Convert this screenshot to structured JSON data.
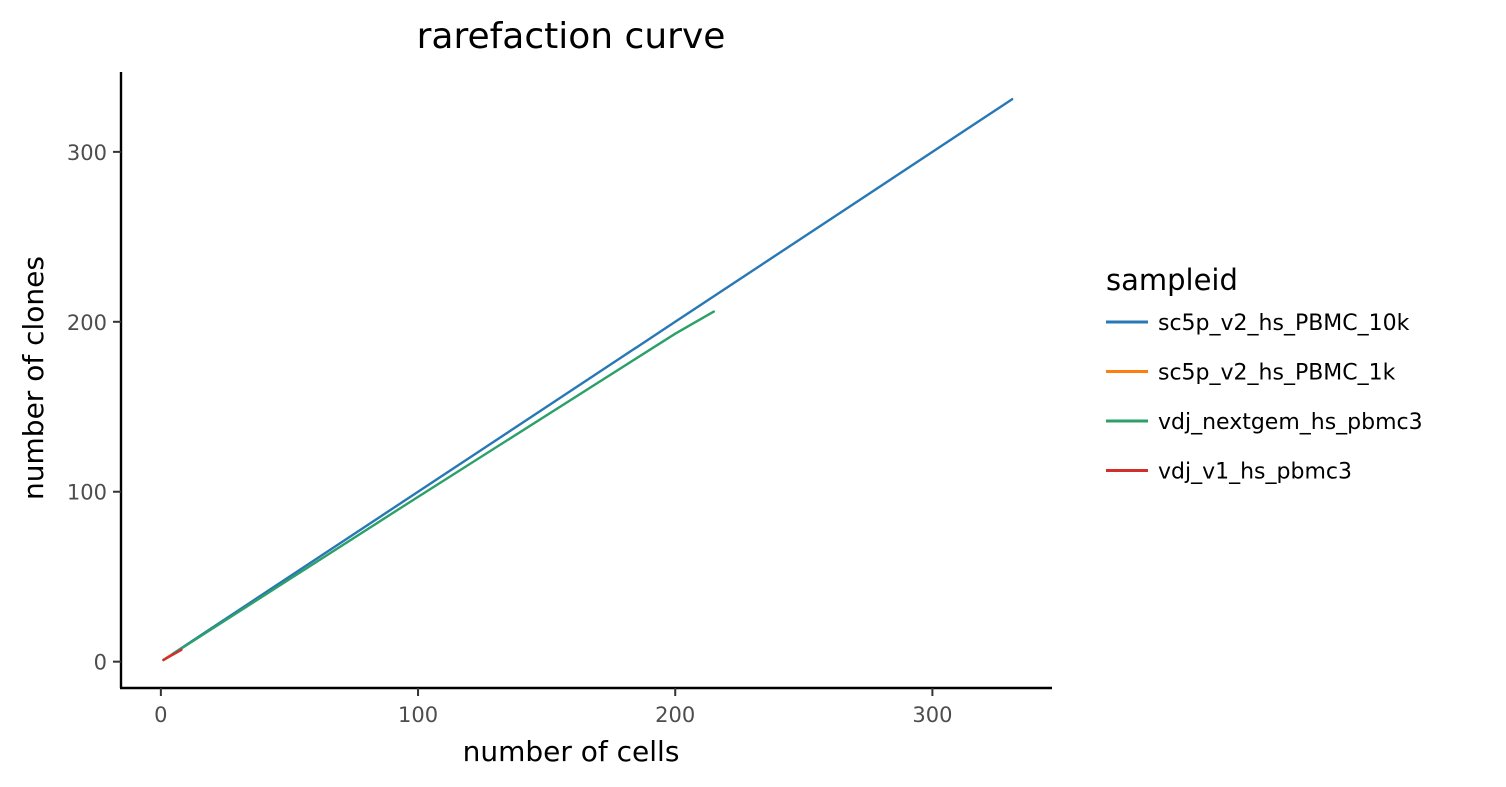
{
  "chart_data": {
    "type": "line",
    "title": "rarefaction curve",
    "xlabel": "number of cells",
    "ylabel": "number of clones",
    "xlim": [
      -15.5,
      346.5
    ],
    "ylim": [
      -15.5,
      347
    ],
    "xticks": [
      0,
      100,
      200,
      300
    ],
    "yticks": [
      0,
      100,
      200,
      300
    ],
    "xtick_labels": [
      "0",
      "100",
      "200",
      "300"
    ],
    "ytick_labels": [
      "0",
      "100",
      "200",
      "300"
    ],
    "grid": false,
    "legend": {
      "title": "sampleid",
      "placement": "right"
    },
    "series": [
      {
        "name": "sc5p_v2_hs_PBMC_10k",
        "color": "#2878b5",
        "x": [
          1,
          100,
          200,
          300,
          331
        ],
        "y": [
          1,
          100,
          200,
          300,
          331
        ]
      },
      {
        "name": "sc5p_v2_hs_PBMC_1k",
        "color": "#ff7f0e",
        "x": [
          1,
          4
        ],
        "y": [
          1,
          4
        ]
      },
      {
        "name": "vdj_nextgem_hs_pbmc3",
        "color": "#2ca068",
        "x": [
          1,
          100,
          200,
          215
        ],
        "y": [
          1,
          97,
          193,
          206
        ]
      },
      {
        "name": "vdj_v1_hs_pbmc3",
        "color": "#d12f2c",
        "x": [
          1,
          8
        ],
        "y": [
          1,
          7
        ]
      }
    ]
  }
}
